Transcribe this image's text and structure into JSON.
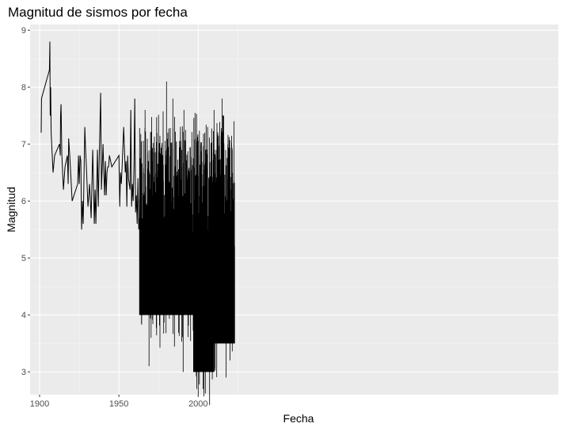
{
  "chart_data": {
    "type": "line",
    "title": "Magnitud de sismos por fecha",
    "xlabel": "Fecha",
    "ylabel": "Magnitud",
    "xlim": [
      1894,
      2227
    ],
    "ylim": [
      2.6,
      9.1
    ],
    "x_ticks": [
      1900,
      1950,
      2000
    ],
    "y_ticks": [
      3,
      4,
      5,
      6,
      7,
      8,
      9
    ],
    "grid": true,
    "legend": "none",
    "colors": {
      "panel": "#ebebeb",
      "grid": "#ffffff",
      "line": "#000000"
    },
    "series": [
      {
        "x": [
          1901.0,
          1901.2,
          1906.2,
          1906.5,
          1906.7,
          1907.0,
          1907.3,
          1908.5,
          1909.5,
          1912.5,
          1913.0,
          1913.2,
          1913.5,
          1914.0,
          1915.0,
          1916.0,
          1917.5,
          1918.0,
          1918.3,
          1919.0,
          1920.5,
          1924.0,
          1924.5,
          1925.0,
          1925.5,
          1926.0,
          1926.5,
          1927.0,
          1927.5,
          1928.5,
          1929.0,
          1929.5,
          1930.5,
          1931.5,
          1932.5,
          1933.5,
          1934.5,
          1935.0,
          1935.5,
          1936.5,
          1937.0,
          1937.5,
          1938.5,
          1939.0,
          1940.0,
          1940.5,
          1941.0,
          1941.5,
          1942.0,
          1942.5,
          1943.0,
          1943.5,
          1944.0,
          1945.5,
          1950.0,
          1950.5,
          1951.0,
          1951.5,
          1952.0,
          1953.0,
          1954.0,
          1954.5,
          1955.0,
          1955.5,
          1956.0,
          1957.0,
          1957.5,
          1958.0,
          1958.5,
          1959.0,
          1959.5,
          1960.0,
          1960.5,
          1961.0,
          1961.5,
          1962.0,
          1962.5,
          1963.0
        ],
        "y": [
          7.2,
          7.8,
          8.3,
          8.8,
          7.5,
          8.0,
          7.2,
          6.5,
          6.8,
          7.0,
          6.8,
          7.5,
          7.7,
          6.8,
          6.2,
          6.6,
          6.8,
          6.3,
          7.1,
          6.8,
          6.0,
          6.3,
          6.8,
          6.3,
          6.8,
          6.7,
          5.5,
          6.0,
          5.6,
          7.3,
          6.9,
          6.6,
          5.9,
          6.3,
          5.7,
          6.9,
          5.6,
          6.2,
          5.6,
          6.9,
          5.9,
          6.6,
          7.9,
          6.2,
          7.0,
          6.5,
          6.1,
          6.7,
          6.1,
          6.5,
          6.6,
          6.6,
          6.8,
          6.6,
          6.8,
          5.9,
          6.5,
          6.3,
          6.6,
          7.3,
          6.5,
          6.7,
          5.9,
          6.8,
          6.4,
          6.2,
          7.6,
          5.9,
          6.3,
          6.0,
          6.6,
          7.8,
          5.8,
          6.1,
          5.6,
          6.4,
          5.5,
          5.7
        ]
      }
    ],
    "dense_series_summary": {
      "x_range": [
        1963,
        2023
      ],
      "y_min": 2.9,
      "y_max": 8.1,
      "floors": [
        {
          "x_range": [
            1963,
            1997
          ],
          "y": 4.0
        },
        {
          "x_range": [
            1997,
            2010
          ],
          "y": 3.0
        },
        {
          "x_range": [
            2010,
            2023
          ],
          "y": 3.5
        }
      ]
    }
  }
}
